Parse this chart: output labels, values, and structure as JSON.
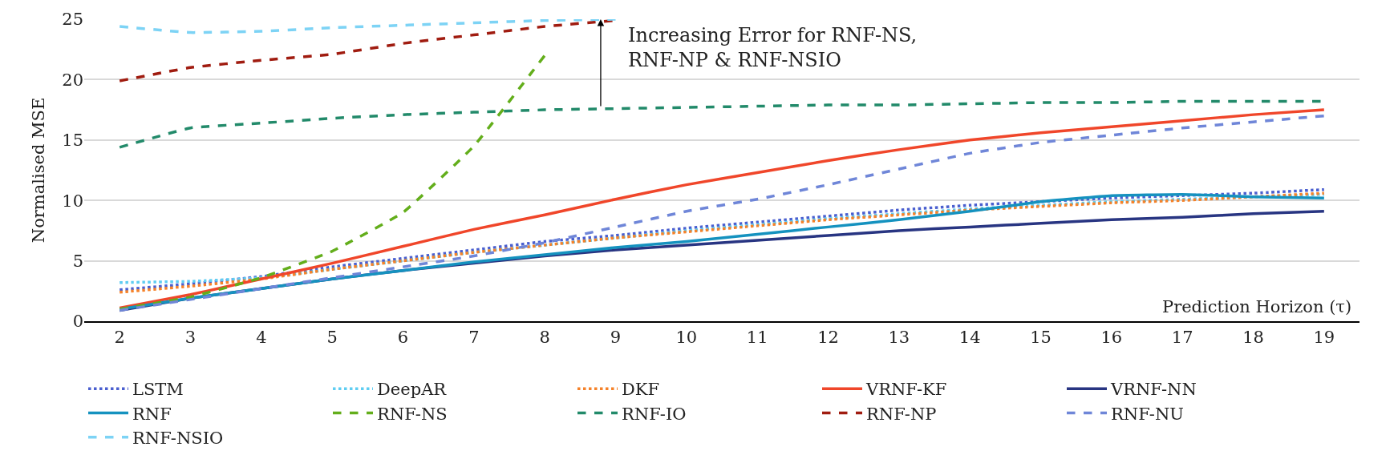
{
  "chart_data": {
    "type": "line",
    "ylabel": "Normalised MSE",
    "xlabel": "Prediction Horizon (τ)",
    "categories": [
      "2",
      "3",
      "4",
      "5",
      "6",
      "7",
      "8",
      "9",
      "10",
      "11",
      "12",
      "13",
      "14",
      "15",
      "16",
      "17",
      "18",
      "19"
    ],
    "ylim": [
      0,
      25
    ],
    "yticks": [
      0,
      5,
      10,
      15,
      20,
      25
    ],
    "grid": "y",
    "legend": "bottom",
    "marker": "none",
    "annotations": [
      "Increasing Error for RNF-NS,\nRNF-NP & RNF-NSIO"
    ],
    "series": [
      {
        "name": "LSTM",
        "color": "#4a5fcf",
        "line_style": "dotted",
        "values": [
          2.6,
          3.1,
          3.7,
          4.5,
          5.2,
          5.9,
          6.6,
          7.1,
          7.7,
          8.2,
          8.7,
          9.2,
          9.6,
          9.9,
          10.2,
          10.4,
          10.6,
          10.9
        ]
      },
      {
        "name": "DeepAR",
        "color": "#5fcdf2",
        "line_style": "dotted",
        "values": [
          3.2,
          3.3,
          3.6,
          4.3,
          5.0,
          5.7,
          6.3,
          6.9,
          7.5,
          8.0,
          8.5,
          8.9,
          9.3,
          9.6,
          9.9,
          10.1,
          10.3,
          10.5
        ]
      },
      {
        "name": "DKF",
        "color": "#f5822a",
        "line_style": "dotted",
        "values": [
          2.4,
          2.9,
          3.5,
          4.3,
          5.0,
          5.7,
          6.3,
          6.9,
          7.4,
          7.9,
          8.4,
          8.8,
          9.2,
          9.5,
          9.8,
          10.0,
          10.3,
          10.6
        ]
      },
      {
        "name": "VRNF-KF",
        "color": "#f0462a",
        "line_style": "solid",
        "values": [
          1.1,
          2.2,
          3.5,
          4.8,
          6.2,
          7.6,
          8.8,
          10.1,
          11.3,
          12.3,
          13.3,
          14.2,
          15.0,
          15.6,
          16.1,
          16.6,
          17.1,
          17.5
        ]
      },
      {
        "name": "VRNF-NN",
        "color": "#283582",
        "line_style": "solid",
        "values": [
          0.9,
          1.9,
          2.7,
          3.5,
          4.2,
          4.8,
          5.4,
          5.9,
          6.3,
          6.7,
          7.1,
          7.5,
          7.8,
          8.1,
          8.4,
          8.6,
          8.9,
          9.1
        ]
      },
      {
        "name": "RNF",
        "color": "#1592bf",
        "line_style": "solid",
        "values": [
          1.0,
          1.9,
          2.7,
          3.5,
          4.2,
          4.9,
          5.5,
          6.1,
          6.6,
          7.2,
          7.8,
          8.4,
          9.1,
          9.9,
          10.4,
          10.5,
          10.3,
          10.2
        ]
      },
      {
        "name": "RNF-NS",
        "color": "#63ae1b",
        "line_style": "dashed",
        "values": [
          1.0,
          2.0,
          3.6,
          5.8,
          9.0,
          14.5,
          22.0,
          null,
          null,
          null,
          null,
          null,
          null,
          null,
          null,
          null,
          null,
          null
        ]
      },
      {
        "name": "RNF-IO",
        "color": "#228a6a",
        "line_style": "dashed",
        "values": [
          14.4,
          16.0,
          16.4,
          16.8,
          17.1,
          17.3,
          17.5,
          17.6,
          17.7,
          17.8,
          17.9,
          17.9,
          18.0,
          18.1,
          18.1,
          18.2,
          18.2,
          18.2
        ]
      },
      {
        "name": "RNF-NP",
        "color": "#a01c10",
        "line_style": "dashed",
        "values": [
          19.9,
          21.0,
          21.6,
          22.1,
          23.0,
          23.7,
          24.4,
          24.9,
          null,
          null,
          null,
          null,
          null,
          null,
          null,
          null,
          null,
          null
        ]
      },
      {
        "name": "RNF-NU",
        "color": "#6f86d8",
        "line_style": "dashed",
        "values": [
          0.9,
          1.8,
          2.7,
          3.6,
          4.5,
          5.4,
          6.5,
          7.8,
          9.1,
          10.1,
          11.3,
          12.6,
          13.9,
          14.8,
          15.4,
          16.0,
          16.5,
          17.0
        ]
      },
      {
        "name": "RNF-NSIO",
        "color": "#7dd3f5",
        "line_style": "dashed",
        "values": [
          24.4,
          23.9,
          24.0,
          24.3,
          24.5,
          24.7,
          24.9,
          25.0,
          null,
          null,
          null,
          null,
          null,
          null,
          null,
          null,
          null,
          null
        ]
      }
    ]
  }
}
